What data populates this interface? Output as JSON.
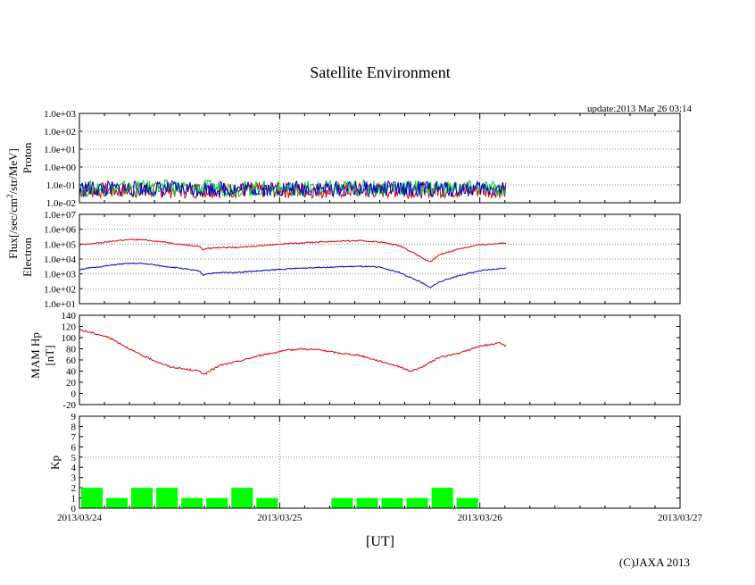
{
  "title": "Satellite Environment",
  "update": "update:2013 Mar 26 03:14",
  "copyright": "(C)JAXA 2013",
  "xlabel": "[UT]",
  "x_ticks": [
    "2013/03/24",
    "2013/03/25",
    "2013/03/26",
    "2013/03/27"
  ],
  "shared_ylabel": "Flux[/sec/cm^2/str/MeV]",
  "shared_ylabel_parts": {
    "pre": "Flux[/sec/cm",
    "sup": "2",
    "post": "/str/MeV]"
  },
  "colors": {
    "red": "#e00000",
    "blue": "#0000cc",
    "green": "#00cc33",
    "kp": "#00ff00",
    "grid": "#888888"
  },
  "chart_data": [
    {
      "type": "line",
      "name": "Proton",
      "ylabel": "Proton",
      "yscale": "log",
      "ylim": [
        0.01,
        1000
      ],
      "y_ticks": [
        "1.0e-02",
        "1.0e-01",
        "1.0e+00",
        "1.0e+01",
        "1.0e+02",
        "1.0e+03"
      ],
      "x_days": [
        0,
        3
      ],
      "series": [
        {
          "name": "red",
          "color": "#e00000",
          "x": [
            0,
            0.5,
            1.0,
            1.5,
            2.13
          ],
          "y": [
            0.05,
            0.05,
            0.05,
            0.05,
            0.05
          ]
        },
        {
          "name": "green",
          "color": "#00cc33",
          "x": [
            0,
            0.5,
            1.0,
            1.5,
            2.13
          ],
          "y": [
            0.06,
            0.07,
            0.06,
            0.07,
            0.06
          ]
        },
        {
          "name": "blue",
          "color": "#0000cc",
          "x": [
            0,
            0.5,
            1.0,
            1.5,
            2.13
          ],
          "y": [
            0.06,
            0.06,
            0.06,
            0.06,
            0.06
          ]
        }
      ]
    },
    {
      "type": "line",
      "name": "Electron",
      "ylabel": "Electron",
      "yscale": "log",
      "ylim": [
        10,
        10000000
      ],
      "y_ticks": [
        "1.0e+01",
        "1.0e+02",
        "1.0e+03",
        "1.0e+04",
        "1.0e+05",
        "1.0e+06",
        "1.0e+07"
      ],
      "x_days": [
        0,
        3
      ],
      "series": [
        {
          "name": "red",
          "color": "#e00000",
          "x": [
            0,
            0.1,
            0.2,
            0.25,
            0.3,
            0.35,
            0.4,
            0.5,
            0.6,
            0.62,
            0.63,
            0.7,
            0.8,
            0.9,
            1.0,
            1.1,
            1.2,
            1.3,
            1.4,
            1.5,
            1.6,
            1.7,
            1.75,
            1.8,
            1.9,
            2.0,
            2.13
          ],
          "y": [
            90000,
            120000,
            180000,
            200000,
            200000,
            180000,
            150000,
            100000,
            70000,
            40000,
            50000,
            60000,
            60000,
            80000,
            100000,
            120000,
            140000,
            160000,
            170000,
            140000,
            80000,
            15000,
            6000,
            20000,
            50000,
            90000,
            120000
          ]
        },
        {
          "name": "blue",
          "color": "#0000cc",
          "x": [
            0,
            0.1,
            0.2,
            0.25,
            0.3,
            0.35,
            0.4,
            0.5,
            0.6,
            0.62,
            0.63,
            0.7,
            0.8,
            0.9,
            1.0,
            1.1,
            1.2,
            1.3,
            1.4,
            1.5,
            1.6,
            1.7,
            1.75,
            1.8,
            1.9,
            2.0,
            2.13
          ],
          "y": [
            2000,
            3000,
            4500,
            5000,
            5000,
            4500,
            3500,
            2500,
            1500,
            800,
            1000,
            1200,
            1300,
            1600,
            2000,
            2400,
            2800,
            3000,
            3200,
            2800,
            1200,
            300,
            120,
            300,
            800,
            1600,
            2500
          ]
        }
      ]
    },
    {
      "type": "line",
      "name": "MAM Hp",
      "ylabel": "MAM Hp",
      "ylabel2": "[nT]",
      "yscale": "linear",
      "ylim": [
        -20,
        140
      ],
      "y_ticks": [
        "-20",
        "0",
        "20",
        "40",
        "60",
        "80",
        "100",
        "120",
        "140"
      ],
      "x_days": [
        0,
        3
      ],
      "series": [
        {
          "name": "red",
          "color": "#e00000",
          "x": [
            0,
            0.02,
            0.05,
            0.1,
            0.15,
            0.2,
            0.3,
            0.4,
            0.45,
            0.5,
            0.6,
            0.62,
            0.63,
            0.65,
            0.7,
            0.8,
            0.9,
            1.0,
            1.1,
            1.2,
            1.3,
            1.4,
            1.5,
            1.6,
            1.65,
            1.7,
            1.75,
            1.8,
            1.9,
            2.0,
            2.1,
            2.13
          ],
          "y": [
            115,
            112,
            110,
            105,
            100,
            90,
            70,
            55,
            48,
            45,
            40,
            35,
            35,
            40,
            50,
            58,
            68,
            75,
            80,
            78,
            72,
            68,
            58,
            48,
            40,
            45,
            55,
            65,
            72,
            85,
            90,
            85
          ]
        }
      ]
    },
    {
      "type": "bar",
      "name": "Kp",
      "ylabel": "Kp",
      "yscale": "linear",
      "ylim": [
        0,
        9
      ],
      "y_ticks": [
        "0",
        "1",
        "2",
        "3",
        "4",
        "5",
        "6",
        "7",
        "8",
        "9"
      ],
      "bar_width_days": 0.125,
      "x_days": [
        0,
        3
      ],
      "x": [
        0,
        0.125,
        0.25,
        0.375,
        0.5,
        0.625,
        0.75,
        0.875,
        1.0,
        1.125,
        1.25,
        1.375,
        1.5,
        1.625,
        1.75,
        1.875,
        2.0
      ],
      "values": [
        2,
        1,
        2,
        2,
        1,
        1,
        2,
        1,
        0,
        0,
        1,
        1,
        1,
        1,
        2,
        1,
        0
      ]
    }
  ]
}
